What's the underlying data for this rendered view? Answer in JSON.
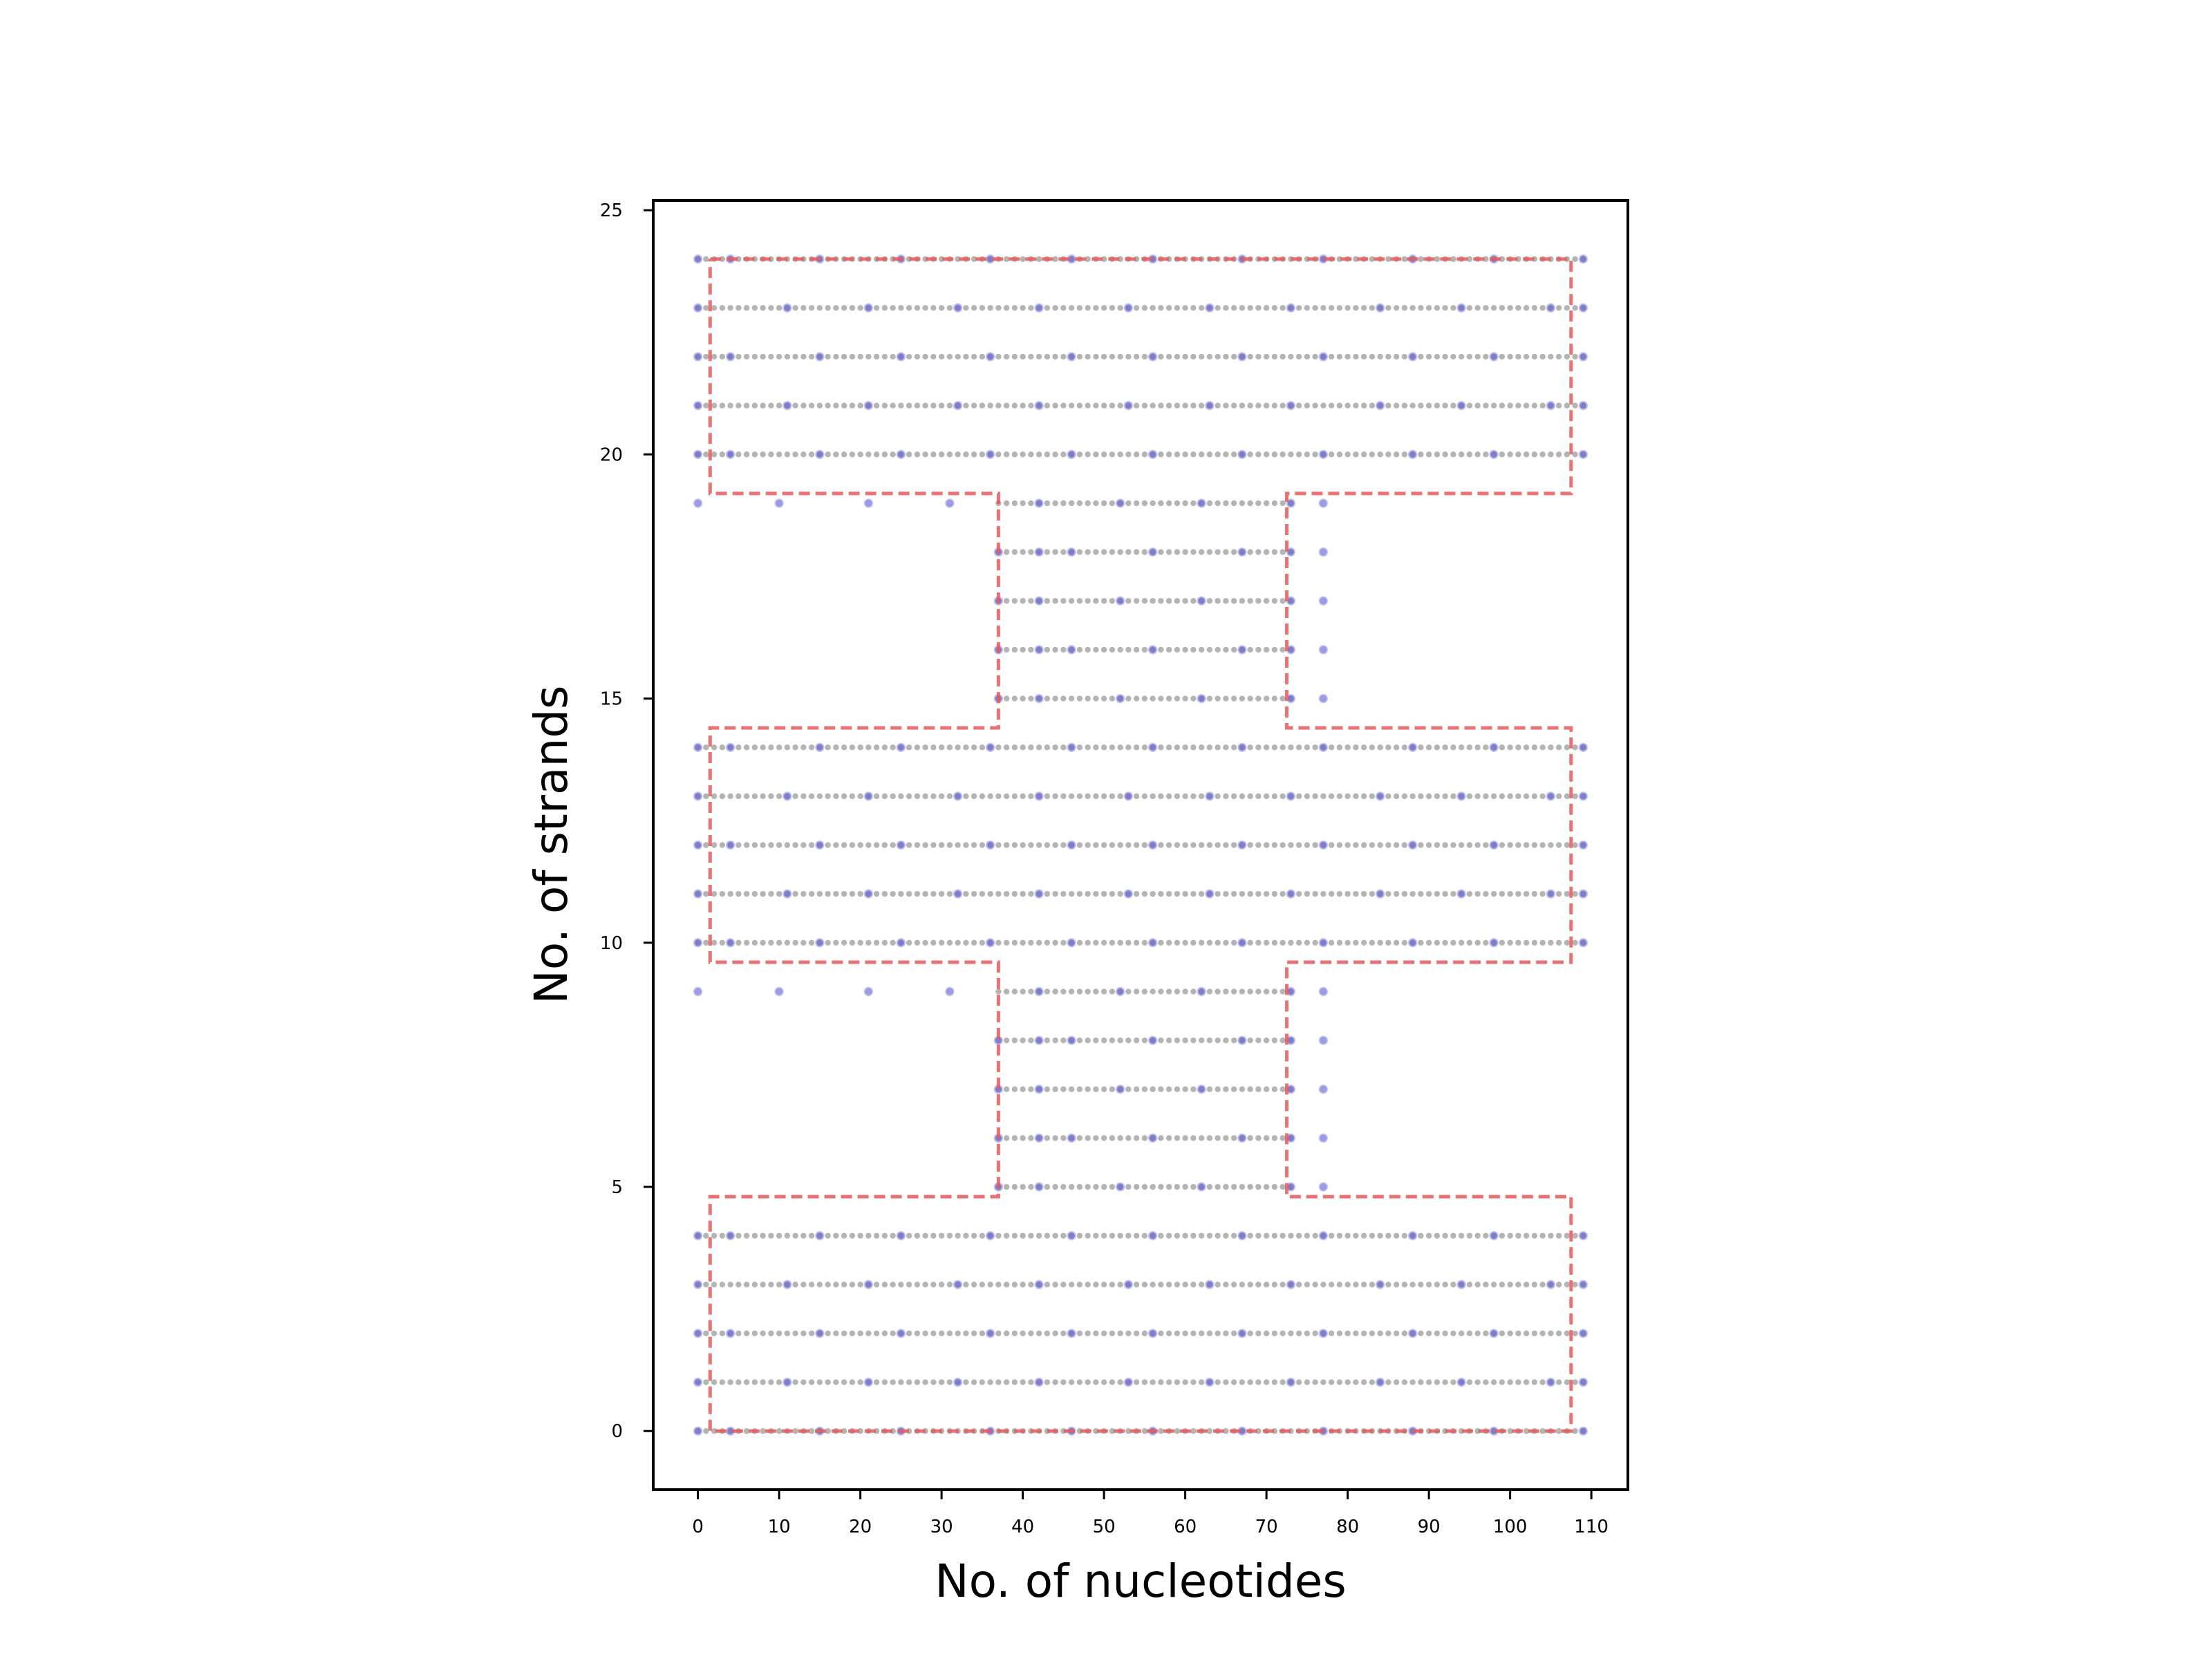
{
  "chart_data": {
    "type": "scatter",
    "title": "",
    "xlabel": "No. of nucleotides",
    "ylabel": "No. of strands",
    "xlim": [
      -5.5,
      114.5
    ],
    "ylim": [
      -1.2,
      25.2
    ],
    "xticks": [
      0,
      10,
      20,
      30,
      40,
      50,
      60,
      70,
      80,
      90,
      100,
      110
    ],
    "yticks": [
      0,
      5,
      10,
      15,
      20,
      25
    ],
    "grid": false,
    "legend": "none",
    "colors": {
      "nucleotide": "#b4b4b4",
      "crossover": "#5a5ad2",
      "outline": "#e8595c"
    },
    "rows": [
      {
        "strand": 24,
        "x_start": 0,
        "x_end": 109,
        "crossovers": [
          0,
          4,
          15,
          25,
          36,
          46,
          56,
          67,
          77,
          88,
          98,
          109
        ]
      },
      {
        "strand": 23,
        "x_start": 0,
        "x_end": 109,
        "crossovers": [
          0,
          11,
          21,
          32,
          42,
          53,
          63,
          73,
          84,
          94,
          105,
          109
        ]
      },
      {
        "strand": 22,
        "x_start": 0,
        "x_end": 109,
        "crossovers": [
          0,
          4,
          15,
          25,
          36,
          46,
          56,
          67,
          77,
          88,
          98,
          109
        ]
      },
      {
        "strand": 21,
        "x_start": 0,
        "x_end": 109,
        "crossovers": [
          0,
          11,
          21,
          32,
          42,
          53,
          63,
          73,
          84,
          94,
          105,
          109
        ]
      },
      {
        "strand": 20,
        "x_start": 0,
        "x_end": 109,
        "crossovers": [
          0,
          4,
          15,
          25,
          36,
          46,
          56,
          67,
          77,
          88,
          98,
          109
        ]
      },
      {
        "strand": 19,
        "x_start": 37,
        "x_end": 73,
        "crossovers": [
          0,
          10,
          21,
          31,
          42,
          52,
          62,
          73,
          77
        ]
      },
      {
        "strand": 18,
        "x_start": 37,
        "x_end": 73,
        "crossovers": [
          37,
          42,
          46,
          56,
          67,
          73,
          77
        ]
      },
      {
        "strand": 17,
        "x_start": 37,
        "x_end": 73,
        "crossovers": [
          37,
          42,
          52,
          62,
          73,
          77
        ]
      },
      {
        "strand": 16,
        "x_start": 37,
        "x_end": 73,
        "crossovers": [
          37,
          42,
          46,
          56,
          67,
          73,
          77
        ]
      },
      {
        "strand": 15,
        "x_start": 37,
        "x_end": 73,
        "crossovers": [
          37,
          42,
          52,
          62,
          73,
          77
        ]
      },
      {
        "strand": 14,
        "x_start": 0,
        "x_end": 109,
        "crossovers": [
          0,
          4,
          15,
          25,
          36,
          46,
          56,
          67,
          77,
          88,
          98,
          109
        ]
      },
      {
        "strand": 13,
        "x_start": 0,
        "x_end": 109,
        "crossovers": [
          0,
          11,
          21,
          32,
          42,
          53,
          63,
          73,
          84,
          94,
          105,
          109
        ]
      },
      {
        "strand": 12,
        "x_start": 0,
        "x_end": 109,
        "crossovers": [
          0,
          4,
          15,
          25,
          36,
          46,
          56,
          67,
          77,
          88,
          98,
          109
        ]
      },
      {
        "strand": 11,
        "x_start": 0,
        "x_end": 109,
        "crossovers": [
          0,
          11,
          21,
          32,
          42,
          53,
          63,
          73,
          84,
          94,
          105,
          109
        ]
      },
      {
        "strand": 10,
        "x_start": 0,
        "x_end": 109,
        "crossovers": [
          0,
          4,
          15,
          25,
          36,
          46,
          56,
          67,
          77,
          88,
          98,
          109
        ]
      },
      {
        "strand": 9,
        "x_start": 37,
        "x_end": 73,
        "crossovers": [
          0,
          10,
          21,
          31,
          42,
          52,
          62,
          73,
          77
        ]
      },
      {
        "strand": 8,
        "x_start": 37,
        "x_end": 73,
        "crossovers": [
          37,
          42,
          46,
          56,
          67,
          73,
          77
        ]
      },
      {
        "strand": 7,
        "x_start": 37,
        "x_end": 73,
        "crossovers": [
          37,
          42,
          52,
          62,
          73,
          77
        ]
      },
      {
        "strand": 6,
        "x_start": 37,
        "x_end": 73,
        "crossovers": [
          37,
          42,
          46,
          56,
          67,
          73,
          77
        ]
      },
      {
        "strand": 5,
        "x_start": 37,
        "x_end": 73,
        "crossovers": [
          37,
          42,
          52,
          62,
          73,
          77
        ]
      },
      {
        "strand": 4,
        "x_start": 0,
        "x_end": 109,
        "crossovers": [
          0,
          4,
          15,
          25,
          36,
          46,
          56,
          67,
          77,
          88,
          98,
          109
        ]
      },
      {
        "strand": 3,
        "x_start": 0,
        "x_end": 109,
        "crossovers": [
          0,
          11,
          21,
          32,
          42,
          53,
          63,
          73,
          84,
          94,
          105,
          109
        ]
      },
      {
        "strand": 2,
        "x_start": 0,
        "x_end": 109,
        "crossovers": [
          0,
          4,
          15,
          25,
          36,
          46,
          56,
          67,
          77,
          88,
          98,
          109
        ]
      },
      {
        "strand": 1,
        "x_start": 0,
        "x_end": 109,
        "crossovers": [
          0,
          11,
          21,
          32,
          42,
          53,
          63,
          73,
          84,
          94,
          105,
          109
        ]
      },
      {
        "strand": 0,
        "x_start": 0,
        "x_end": 109,
        "crossovers": [
          0,
          4,
          15,
          25,
          36,
          46,
          56,
          67,
          77,
          88,
          98,
          109
        ]
      }
    ],
    "outline": [
      [
        1.5,
        24
      ],
      [
        107.5,
        24
      ],
      [
        107.5,
        19.2
      ],
      [
        72.5,
        19.2
      ],
      [
        72.5,
        14.4
      ],
      [
        107.5,
        14.4
      ],
      [
        107.5,
        9.6
      ],
      [
        72.5,
        9.6
      ],
      [
        72.5,
        4.8
      ],
      [
        107.5,
        4.8
      ],
      [
        107.5,
        0
      ],
      [
        1.5,
        0
      ],
      [
        1.5,
        4.8
      ],
      [
        37,
        4.8
      ],
      [
        37,
        9.6
      ],
      [
        1.5,
        9.6
      ],
      [
        1.5,
        14.4
      ],
      [
        37,
        14.4
      ],
      [
        37,
        19.2
      ],
      [
        1.5,
        19.2
      ],
      [
        1.5,
        24
      ]
    ]
  }
}
